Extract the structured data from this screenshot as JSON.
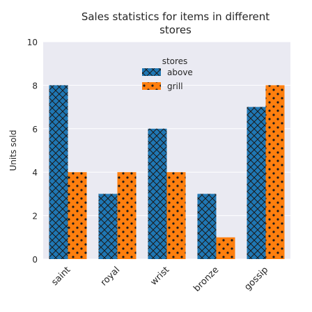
{
  "chart_data": {
    "type": "bar",
    "title": "Sales statistics for items in different stores",
    "title_lines": [
      "Sales statistics for items in different",
      "stores"
    ],
    "xlabel": "",
    "ylabel": "Units sold",
    "categories": [
      "saint",
      "royal",
      "wrist",
      "bronze",
      "gossip"
    ],
    "series": [
      {
        "name": "above",
        "values": [
          8,
          3,
          6,
          3,
          7
        ],
        "color": "#1f77b4",
        "hatch": "cross"
      },
      {
        "name": "grill",
        "values": [
          4,
          4,
          4,
          1,
          8
        ],
        "color": "#ff7f0e",
        "hatch": "dots"
      }
    ],
    "ylim": [
      0,
      10
    ],
    "yticks": [
      0,
      2,
      4,
      6,
      8,
      10
    ],
    "grid": true,
    "legend": {
      "title": "stores",
      "placement": "top-center"
    },
    "background": "#eaeaf2"
  }
}
